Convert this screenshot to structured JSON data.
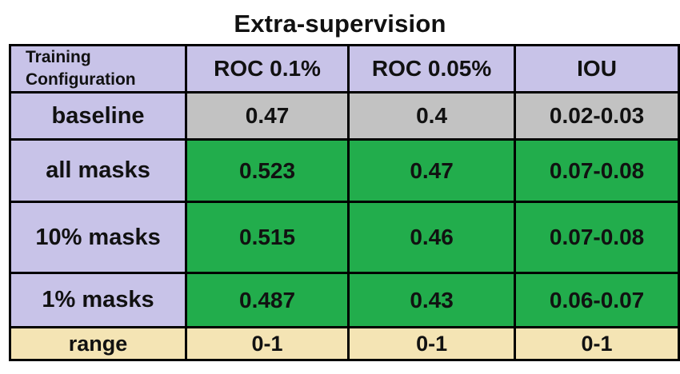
{
  "title": "Extra-supervision",
  "header": {
    "config_line1": "Training",
    "config_line2": "Configuration",
    "columns": [
      "ROC 0.1%",
      "ROC 0.05%",
      "IOU"
    ]
  },
  "rows": [
    {
      "label": "baseline",
      "values": [
        "0.47",
        "0.4",
        "0.02-0.03"
      ]
    },
    {
      "label": "all masks",
      "values": [
        "0.523",
        "0.47",
        "0.07-0.08"
      ]
    },
    {
      "label": "10% masks",
      "values": [
        "0.515",
        "0.46",
        "0.07-0.08"
      ]
    },
    {
      "label": "1% masks",
      "values": [
        "0.487",
        "0.43",
        "0.06-0.07"
      ]
    }
  ],
  "range_row": {
    "label": "range",
    "values": [
      "0-1",
      "0-1",
      "0-1"
    ]
  },
  "colors": {
    "header_and_labels": "#c8c3e8",
    "baseline": "#c2c2c2",
    "improved": "#22ad4c",
    "range": "#f4e4b4"
  }
}
